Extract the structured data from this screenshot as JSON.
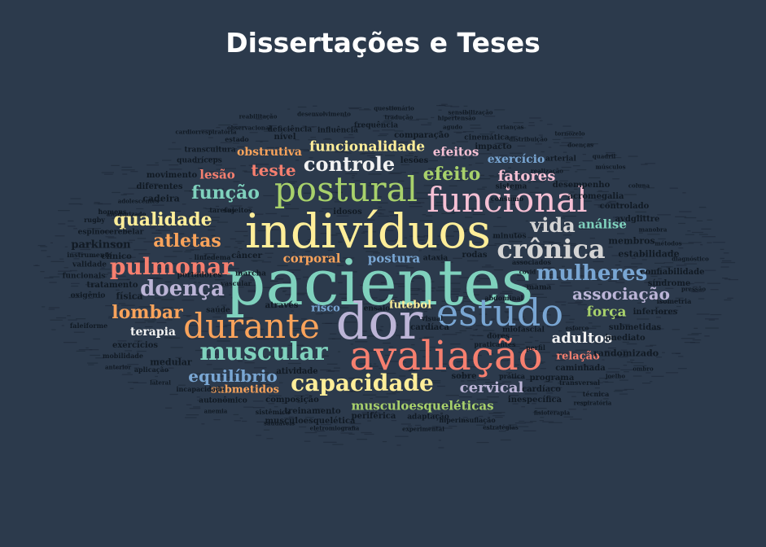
{
  "title": "Dissertações e Teses",
  "colors": {
    "background": "#2c3a4c",
    "title": "#ffffff",
    "palette": {
      "teal": "#7fd1bd",
      "yellow": "#ffee99",
      "pink": "#f6c0d4",
      "orange": "#f9a35b",
      "lavender": "#bcb5d7",
      "salmon": "#f67f6f",
      "blue": "#79a6d3",
      "green": "#a8d16b",
      "light": "#d4d4d4",
      "white": "#f2f2f2",
      "dark": "#111a24"
    }
  },
  "words": [
    {
      "text": "pacientes",
      "color": "teal"
    },
    {
      "text": "indivíduos",
      "color": "yellow"
    },
    {
      "text": "dor",
      "color": "lavender"
    },
    {
      "text": "avaliação",
      "color": "salmon"
    },
    {
      "text": "estudo",
      "color": "blue"
    },
    {
      "text": "durante",
      "color": "orange"
    },
    {
      "text": "postural",
      "color": "green"
    },
    {
      "text": "funcional",
      "color": "pink"
    },
    {
      "text": "crônica",
      "color": "light"
    },
    {
      "text": "muscular",
      "color": "teal"
    },
    {
      "text": "capacidade",
      "color": "yellow"
    },
    {
      "text": "pulmonar",
      "color": "salmon"
    },
    {
      "text": "mulheres",
      "color": "blue"
    },
    {
      "text": "doença",
      "color": "lavender"
    },
    {
      "text": "controle",
      "color": "white"
    },
    {
      "text": "qualidade",
      "color": "yellow"
    },
    {
      "text": "atletas",
      "color": "orange"
    },
    {
      "text": "vida",
      "color": "light"
    },
    {
      "text": "função",
      "color": "teal"
    },
    {
      "text": "lombar",
      "color": "orange"
    },
    {
      "text": "associação",
      "color": "lavender"
    },
    {
      "text": "teste",
      "color": "salmon"
    },
    {
      "text": "efeito",
      "color": "green"
    },
    {
      "text": "equilíbrio",
      "color": "blue"
    },
    {
      "text": "cervical",
      "color": "lavender"
    },
    {
      "text": "adultos",
      "color": "white"
    },
    {
      "text": "fatores",
      "color": "pink"
    },
    {
      "text": "funcionalidade",
      "color": "yellow"
    },
    {
      "text": "força",
      "color": "green"
    },
    {
      "text": "análise",
      "color": "teal"
    },
    {
      "text": "musculoesqueléticas",
      "color": "green"
    },
    {
      "text": "efeitos",
      "color": "pink"
    },
    {
      "text": "obstrutiva",
      "color": "orange"
    },
    {
      "text": "lesão",
      "color": "salmon"
    },
    {
      "text": "corporal",
      "color": "orange"
    },
    {
      "text": "postura",
      "color": "blue"
    },
    {
      "text": "terapia",
      "color": "white"
    },
    {
      "text": "relação",
      "color": "salmon"
    },
    {
      "text": "exercício",
      "color": "blue"
    },
    {
      "text": "submetidos",
      "color": "orange"
    },
    {
      "text": "futebol",
      "color": "yellow"
    },
    {
      "text": "risco",
      "color": "blue"
    },
    {
      "text": "parkinson",
      "color": "dark"
    },
    {
      "text": "clínico",
      "color": "dark"
    },
    {
      "text": "cadeira",
      "color": "dark"
    },
    {
      "text": "diferentes",
      "color": "dark"
    },
    {
      "text": "movimento",
      "color": "dark"
    },
    {
      "text": "quadríceps",
      "color": "dark"
    },
    {
      "text": "transcultura",
      "color": "dark"
    },
    {
      "text": "influência",
      "color": "dark"
    },
    {
      "text": "comparação",
      "color": "dark"
    },
    {
      "text": "impacto",
      "color": "dark"
    },
    {
      "text": "cinemática",
      "color": "dark"
    },
    {
      "text": "frequência",
      "color": "dark"
    },
    {
      "text": "lesões",
      "color": "dark"
    },
    {
      "text": "idosos",
      "color": "dark"
    },
    {
      "text": "câncer",
      "color": "dark"
    },
    {
      "text": "ataxia",
      "color": "dark"
    },
    {
      "text": "rodas",
      "color": "dark"
    },
    {
      "text": "mama",
      "color": "dark"
    },
    {
      "text": "através",
      "color": "dark"
    },
    {
      "text": "física",
      "color": "dark"
    },
    {
      "text": "tratamento",
      "color": "dark"
    },
    {
      "text": "oxigênio",
      "color": "dark"
    },
    {
      "text": "validade",
      "color": "dark"
    },
    {
      "text": "funcionais",
      "color": "dark"
    },
    {
      "text": "instrumento",
      "color": "dark"
    },
    {
      "text": "espinocerebelar",
      "color": "dark"
    },
    {
      "text": "portadores",
      "color": "dark"
    },
    {
      "text": "marcha",
      "color": "dark"
    },
    {
      "text": "exercícios",
      "color": "dark"
    },
    {
      "text": "medular",
      "color": "dark"
    },
    {
      "text": "atividade",
      "color": "dark"
    },
    {
      "text": "sobre",
      "color": "dark"
    },
    {
      "text": "programa",
      "color": "dark"
    },
    {
      "text": "cardíaco",
      "color": "dark"
    },
    {
      "text": "inespecífica",
      "color": "dark"
    },
    {
      "text": "periférica",
      "color": "dark"
    },
    {
      "text": "composição",
      "color": "dark"
    },
    {
      "text": "treinamento",
      "color": "dark"
    },
    {
      "text": "musculoesquelética",
      "color": "dark"
    },
    {
      "text": "autonômico",
      "color": "dark"
    },
    {
      "text": "adaptação",
      "color": "dark"
    },
    {
      "text": "hiperinsuflação",
      "color": "dark"
    },
    {
      "text": "randomizado",
      "color": "dark"
    },
    {
      "text": "caminhada",
      "color": "dark"
    },
    {
      "text": "imediato",
      "color": "dark"
    },
    {
      "text": "submetidas",
      "color": "dark"
    },
    {
      "text": "inferiores",
      "color": "dark"
    },
    {
      "text": "síndrome",
      "color": "dark"
    },
    {
      "text": "confiabilidade",
      "color": "dark"
    },
    {
      "text": "estabilidade",
      "color": "dark"
    },
    {
      "text": "membros",
      "color": "dark"
    },
    {
      "text": "controlado",
      "color": "dark"
    },
    {
      "text": "avdglittre",
      "color": "dark"
    },
    {
      "text": "acromegalia",
      "color": "dark"
    },
    {
      "text": "desempenho",
      "color": "dark"
    },
    {
      "text": "arterial",
      "color": "dark"
    },
    {
      "text": "miofascial",
      "color": "dark"
    },
    {
      "text": "dores",
      "color": "dark"
    },
    {
      "text": "cardíaca",
      "color": "dark"
    },
    {
      "text": "sistema",
      "color": "dark"
    },
    {
      "text": "minutos",
      "color": "dark"
    },
    {
      "text": "saúde",
      "color": "dark"
    },
    {
      "text": "ensaio",
      "color": "dark"
    },
    {
      "text": "visual",
      "color": "dark"
    },
    {
      "text": "nível",
      "color": "dark"
    },
    {
      "text": "deficiência",
      "color": "dark"
    },
    {
      "text": "estado",
      "color": "dark"
    },
    {
      "text": "sujeitos",
      "color": "dark"
    },
    {
      "text": "rugby",
      "color": "dark"
    },
    {
      "text": "homens",
      "color": "dark"
    },
    {
      "text": "incapacidade",
      "color": "dark"
    },
    {
      "text": "faleiforme",
      "color": "dark"
    },
    {
      "text": "mobilidade",
      "color": "dark"
    },
    {
      "text": "aplicação",
      "color": "dark"
    },
    {
      "text": "sistêmica",
      "color": "dark"
    },
    {
      "text": "transversal",
      "color": "dark"
    },
    {
      "text": "praticantes",
      "color": "dark"
    },
    {
      "text": "prática",
      "color": "dark"
    },
    {
      "text": "vascular",
      "color": "dark"
    },
    {
      "text": "tarefas",
      "color": "dark"
    },
    {
      "text": "linfedema",
      "color": "dark"
    },
    {
      "text": "consumo",
      "color": "dark"
    },
    {
      "text": "abdominal",
      "color": "dark"
    },
    {
      "text": "técnica",
      "color": "dark"
    },
    {
      "text": "perfil",
      "color": "dark"
    },
    {
      "text": "esforço",
      "color": "dark"
    },
    {
      "text": "associados",
      "color": "dark"
    },
    {
      "text": "covid",
      "color": "dark"
    },
    {
      "text": "realização",
      "color": "dark"
    },
    {
      "text": "músculos",
      "color": "dark"
    },
    {
      "text": "distribuição",
      "color": "dark"
    },
    {
      "text": "doenças",
      "color": "dark"
    },
    {
      "text": "agudo",
      "color": "dark"
    },
    {
      "text": "tradução",
      "color": "dark"
    },
    {
      "text": "hipertensão",
      "color": "dark"
    },
    {
      "text": "isometria",
      "color": "dark"
    },
    {
      "text": "pressão",
      "color": "dark"
    },
    {
      "text": "anemia",
      "color": "dark"
    },
    {
      "text": "saudáveis",
      "color": "dark"
    },
    {
      "text": "eletromiografia",
      "color": "dark"
    },
    {
      "text": "experimental",
      "color": "dark"
    },
    {
      "text": "estratégias",
      "color": "dark"
    },
    {
      "text": "fisioterapia",
      "color": "dark"
    },
    {
      "text": "respiratória",
      "color": "dark"
    },
    {
      "text": "reabilitação",
      "color": "dark"
    },
    {
      "text": "observacional",
      "color": "dark"
    },
    {
      "text": "cardiorrespiratória",
      "color": "dark"
    },
    {
      "text": "desenvolvimento",
      "color": "dark"
    },
    {
      "text": "crianças",
      "color": "dark"
    },
    {
      "text": "sensibilização",
      "color": "dark"
    },
    {
      "text": "questionário",
      "color": "dark"
    },
    {
      "text": "adolescentes",
      "color": "dark"
    },
    {
      "text": "aleatorizado",
      "color": "dark"
    },
    {
      "text": "manobra",
      "color": "dark"
    },
    {
      "text": "métodos",
      "color": "dark"
    },
    {
      "text": "diagnóstico",
      "color": "dark"
    },
    {
      "text": "anterior",
      "color": "dark"
    },
    {
      "text": "lateral",
      "color": "dark"
    },
    {
      "text": "joelho",
      "color": "dark"
    },
    {
      "text": "ombro",
      "color": "dark"
    },
    {
      "text": "quadril",
      "color": "dark"
    },
    {
      "text": "tornozelo",
      "color": "dark"
    },
    {
      "text": "coluna",
      "color": "dark"
    },
    {
      "text": "mão",
      "color": "dark"
    },
    {
      "text": "punho",
      "color": "dark"
    },
    {
      "text": "pé",
      "color": "dark"
    },
    {
      "text": "cabeça",
      "color": "dark"
    },
    {
      "text": "pescoço",
      "color": "dark"
    },
    {
      "text": "tronco",
      "color": "dark"
    },
    {
      "text": "pelve",
      "color": "dark"
    }
  ]
}
